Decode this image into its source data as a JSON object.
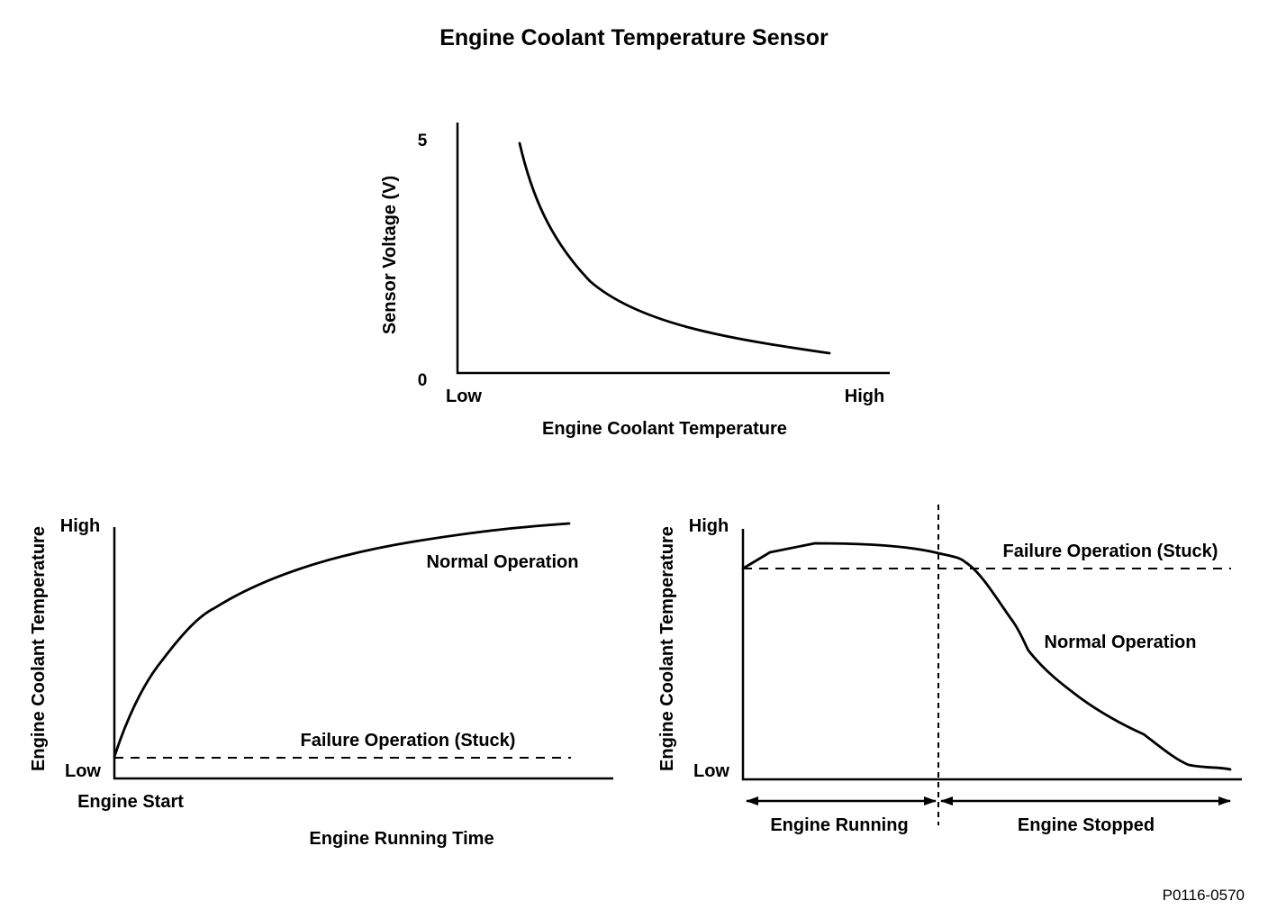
{
  "title": "Engine Coolant Temperature Sensor",
  "figure_code": "P0116-0570",
  "top_chart": {
    "ylabel": "Sensor Voltage (V)",
    "xlabel": "Engine Coolant Temperature",
    "y_tick_top": "5",
    "y_tick_bottom": "0",
    "x_tick_left": "Low",
    "x_tick_right": "High"
  },
  "left_chart": {
    "ylabel": "Engine Coolant Temperature",
    "xlabel": "Engine Running Time",
    "y_tick_high": "High",
    "y_tick_low": "Low",
    "x_start_label": "Engine Start",
    "normal_label": "Normal Operation",
    "failure_label": "Failure Operation (Stuck)"
  },
  "right_chart": {
    "ylabel": "Engine Coolant Temperature",
    "y_tick_high": "High",
    "y_tick_low": "Low",
    "failure_label": "Failure Operation (Stuck)",
    "normal_label": "Normal Operation",
    "running_label": "Engine Running",
    "stopped_label": "Engine Stopped"
  }
}
